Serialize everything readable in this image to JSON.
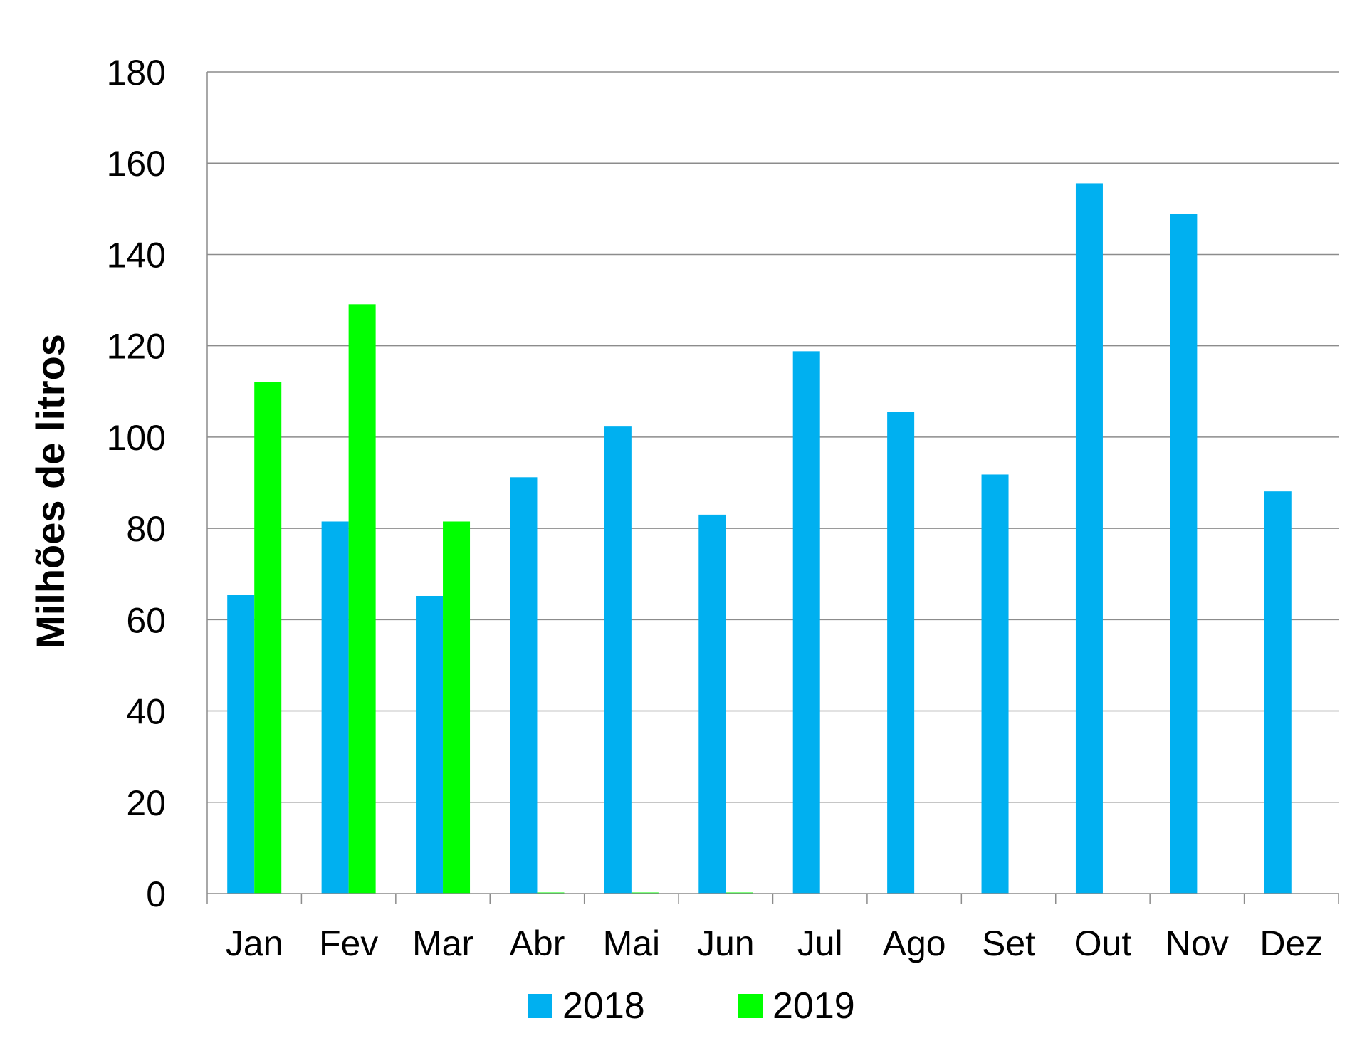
{
  "chart_data": {
    "type": "bar",
    "title": "",
    "xlabel": "",
    "ylabel": "Milhões de litros",
    "ylim": [
      0,
      180
    ],
    "yticks": [
      "0",
      "20",
      "40",
      "60",
      "80",
      "100",
      "120",
      "140",
      "160",
      "180"
    ],
    "grid": true,
    "legend_position": "bottom",
    "categories": [
      "Jan",
      "Fev",
      "Mar",
      "Abr",
      "Mai",
      "Jun",
      "Jul",
      "Ago",
      "Set",
      "Out",
      "Nov",
      "Dez"
    ],
    "series": [
      {
        "name": "2018",
        "color": "#00B0F0",
        "values": [
          65.5,
          81.5,
          65.2,
          91.2,
          102.3,
          83.0,
          118.8,
          105.5,
          91.8,
          155.6,
          148.9,
          88.1
        ]
      },
      {
        "name": "2019",
        "color": "#00FF00",
        "values": [
          112.1,
          129.1,
          81.5,
          0.2,
          0.2,
          0.2,
          null,
          null,
          null,
          null,
          null,
          null
        ]
      }
    ]
  }
}
